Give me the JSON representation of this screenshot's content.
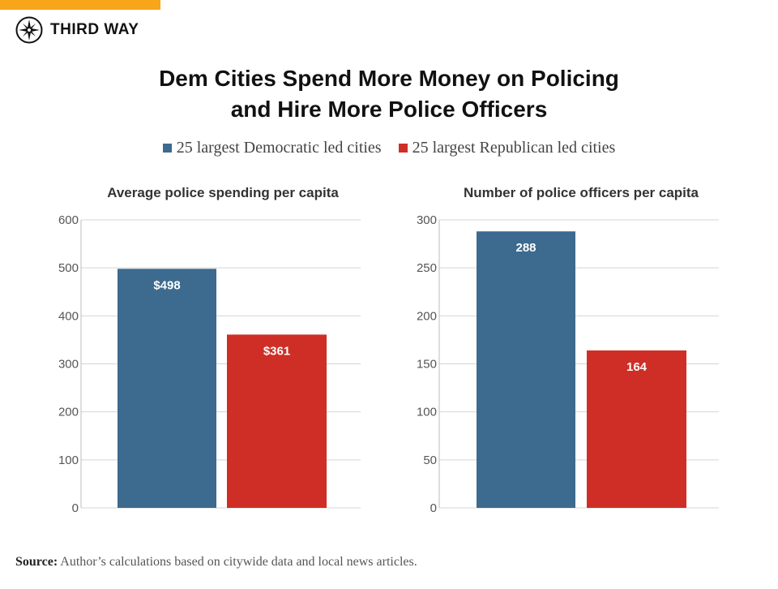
{
  "brand": {
    "name": "THIRD WAY",
    "accent_color": "#f7a51b"
  },
  "title_line1": "Dem Cities Spend More Money on Policing",
  "title_line2": "and Hire More Police Officers",
  "legend": [
    {
      "label": "25 largest Democratic led cities",
      "color": "#3d6a8f"
    },
    {
      "label": "25 largest Republican led cities",
      "color": "#cf2e26"
    }
  ],
  "source": {
    "label": "Source:",
    "text": "Author’s calculations based on citywide data and local news articles."
  },
  "chart_data": [
    {
      "type": "bar",
      "title": "Average police spending per capita",
      "categories": [
        "25 largest Democratic led cities",
        "25 largest Republican led cities"
      ],
      "values": [
        498,
        361
      ],
      "data_labels": [
        "$498",
        "$361"
      ],
      "colors": [
        "#3d6a8f",
        "#cf2e26"
      ],
      "ylim": [
        0,
        600
      ],
      "yticks": [
        0,
        100,
        200,
        300,
        400,
        500,
        600
      ],
      "grid": true
    },
    {
      "type": "bar",
      "title": "Number of police officers per capita",
      "categories": [
        "25 largest Democratic led cities",
        "25 largest Republican led cities"
      ],
      "values": [
        288,
        164
      ],
      "data_labels": [
        "288",
        "164"
      ],
      "colors": [
        "#3d6a8f",
        "#cf2e26"
      ],
      "ylim": [
        0,
        300
      ],
      "yticks": [
        0,
        50,
        100,
        150,
        200,
        250,
        300
      ],
      "grid": true
    }
  ]
}
